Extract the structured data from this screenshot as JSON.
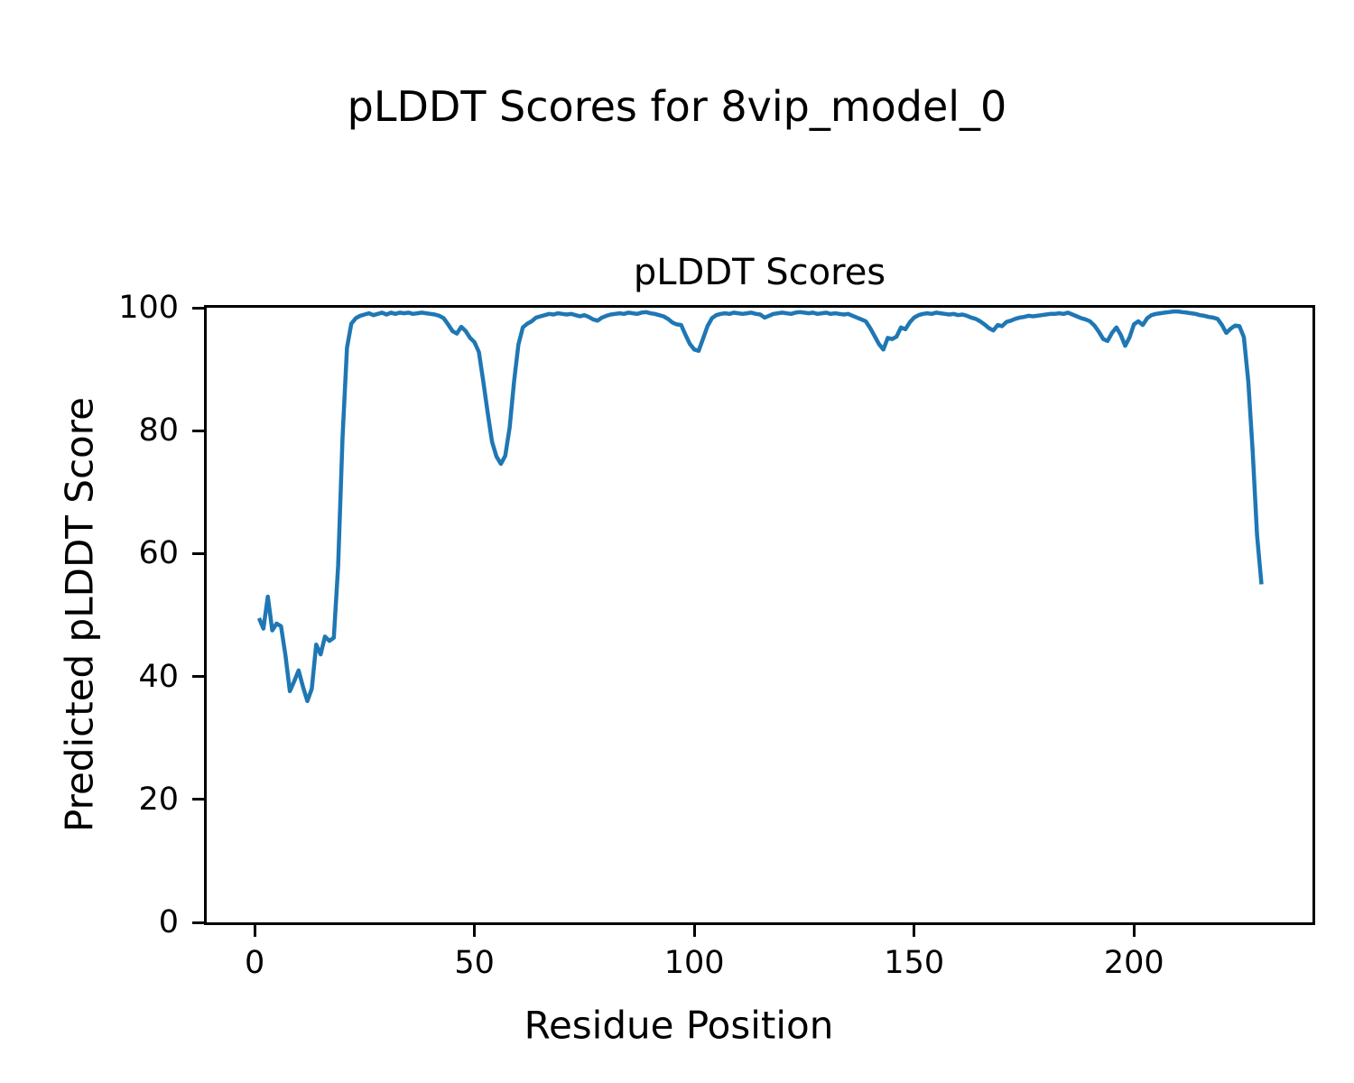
{
  "figure": {
    "suptitle": "pLDDT Scores for 8vip_model_0",
    "axes_title": "pLDDT Scores",
    "xlabel": "Residue Position",
    "ylabel": "Predicted pLDDT Score"
  },
  "chart_data": {
    "type": "line",
    "suptitle": "pLDDT Scores for 8vip_model_0",
    "title": "pLDDT Scores",
    "xlabel": "Residue Position",
    "ylabel": "Predicted pLDDT Score",
    "line_color": "#1f77b4",
    "axis_color": "#000000",
    "grid": false,
    "legend": "none",
    "xlim": [
      -10.9,
      240.6
    ],
    "ylim": [
      0,
      100
    ],
    "xticks": [
      0,
      50,
      100,
      150,
      200
    ],
    "yticks": [
      0,
      20,
      40,
      60,
      80,
      100
    ],
    "x_start": 1,
    "series_name": "pLDDT",
    "values": [
      49.5,
      47.8,
      53.0,
      47.5,
      48.6,
      48.2,
      43.5,
      37.6,
      39.2,
      41.0,
      38.3,
      36.0,
      38.0,
      45.2,
      43.6,
      46.5,
      45.8,
      46.3,
      58.0,
      79.0,
      93.5,
      97.4,
      98.3,
      98.7,
      98.9,
      99.1,
      98.8,
      99.0,
      99.2,
      98.9,
      99.2,
      99.0,
      99.2,
      99.1,
      99.2,
      99.0,
      99.1,
      99.2,
      99.1,
      99.0,
      98.9,
      98.7,
      98.3,
      97.3,
      96.2,
      95.8,
      96.9,
      96.2,
      95.1,
      94.4,
      92.8,
      88.0,
      83.0,
      78.2,
      75.8,
      74.6,
      75.9,
      80.5,
      88.0,
      94.0,
      96.8,
      97.4,
      97.8,
      98.4,
      98.6,
      98.8,
      99.0,
      98.9,
      99.1,
      99.0,
      98.9,
      99.0,
      98.8,
      98.6,
      98.8,
      98.5,
      98.1,
      97.9,
      98.4,
      98.7,
      98.9,
      99.0,
      99.1,
      99.0,
      99.2,
      99.1,
      99.0,
      99.2,
      99.3,
      99.1,
      99.0,
      98.8,
      98.6,
      98.2,
      97.6,
      97.3,
      97.2,
      95.6,
      94.1,
      93.2,
      93.0,
      95.0,
      97.0,
      98.3,
      98.8,
      99.0,
      99.1,
      99.0,
      99.2,
      99.1,
      99.0,
      99.1,
      99.2,
      99.0,
      98.9,
      98.4,
      98.7,
      99.0,
      99.1,
      99.2,
      99.1,
      99.0,
      99.2,
      99.3,
      99.2,
      99.1,
      99.2,
      99.0,
      99.1,
      99.2,
      99.0,
      99.1,
      99.0,
      98.9,
      99.0,
      98.7,
      98.4,
      98.1,
      97.8,
      96.7,
      95.4,
      94.1,
      93.2,
      95.1,
      94.9,
      95.3,
      96.8,
      96.5,
      97.6,
      98.4,
      98.8,
      99.0,
      99.1,
      99.0,
      99.2,
      99.1,
      99.0,
      98.9,
      99.0,
      98.8,
      98.9,
      98.7,
      98.4,
      98.2,
      97.8,
      97.3,
      96.7,
      96.3,
      97.2,
      97.0,
      97.7,
      97.9,
      98.2,
      98.4,
      98.5,
      98.7,
      98.6,
      98.7,
      98.8,
      98.9,
      99.0,
      99.0,
      99.1,
      99.0,
      99.2,
      98.9,
      98.6,
      98.3,
      98.1,
      97.8,
      97.1,
      96.1,
      94.9,
      94.6,
      95.9,
      96.8,
      95.6,
      93.8,
      95.2,
      97.3,
      97.8,
      97.2,
      98.3,
      98.8,
      99.0,
      99.1,
      99.2,
      99.3,
      99.4,
      99.4,
      99.3,
      99.2,
      99.1,
      99.0,
      98.8,
      98.7,
      98.5,
      98.4,
      98.2,
      97.2,
      95.9,
      96.6,
      97.1,
      97.0,
      95.2,
      88.0,
      76.5,
      63.0,
      55.0
    ]
  }
}
